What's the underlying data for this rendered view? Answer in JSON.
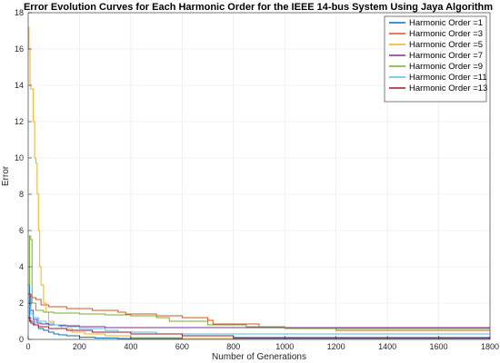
{
  "chart_data": {
    "type": "line",
    "title": "Error Evolution Curves for Each Harmonic Order for the IEEE 14-bus System Using Jaya Algorithm",
    "xlabel": "Number of Generations",
    "ylabel": "Error",
    "xlim": [
      0,
      1800
    ],
    "ylim": [
      0,
      18
    ],
    "xticks": [
      0,
      200,
      400,
      600,
      800,
      1000,
      1200,
      1400,
      1600,
      1800
    ],
    "yticks": [
      0,
      2,
      4,
      6,
      8,
      10,
      12,
      14,
      16,
      18
    ],
    "grid": true,
    "legend_position": "top-right",
    "series": [
      {
        "name": "Harmonic Order =1",
        "color": "#0072BD",
        "x": [
          0,
          5,
          10,
          25,
          40,
          60,
          80,
          100,
          120,
          150,
          200,
          260,
          350,
          1800
        ],
        "y": [
          3.0,
          1.2,
          1.0,
          0.8,
          0.6,
          0.5,
          0.4,
          0.3,
          0.25,
          0.2,
          0.12,
          0.08,
          0.05,
          0.05
        ]
      },
      {
        "name": "Harmonic Order =3",
        "color": "#D95319",
        "x": [
          0,
          5,
          15,
          30,
          50,
          80,
          150,
          250,
          350,
          380,
          500,
          600,
          700,
          720,
          900,
          1000,
          1200,
          1800
        ],
        "y": [
          2.5,
          2.4,
          2.3,
          2.2,
          1.9,
          1.8,
          1.7,
          1.6,
          1.5,
          1.4,
          1.3,
          1.2,
          1.05,
          0.85,
          0.7,
          0.6,
          0.5,
          0.5
        ]
      },
      {
        "name": "Harmonic Order =5",
        "color": "#EDB120",
        "x": [
          0,
          3,
          7,
          10,
          15,
          20,
          25,
          30,
          35,
          40,
          45,
          50,
          60,
          70,
          80,
          100,
          130,
          170,
          220,
          300,
          400,
          600,
          800,
          1800
        ],
        "y": [
          17.2,
          16.0,
          14.0,
          13.8,
          13.8,
          12.0,
          10.0,
          9.7,
          8.0,
          6.0,
          4.0,
          3.0,
          2.0,
          1.5,
          1.0,
          0.8,
          0.6,
          0.4,
          0.3,
          0.2,
          0.1,
          0.05,
          0.02,
          0.02
        ]
      },
      {
        "name": "Harmonic Order =7",
        "color": "#7E2F8E",
        "x": [
          0,
          10,
          20,
          35,
          50,
          80,
          120,
          200,
          300,
          1800
        ],
        "y": [
          2.5,
          1.6,
          1.1,
          0.9,
          0.85,
          0.8,
          0.75,
          0.7,
          0.65,
          0.65
        ]
      },
      {
        "name": "Harmonic Order =9",
        "color": "#77AC30",
        "x": [
          0,
          5,
          10,
          15,
          30,
          60,
          100,
          200,
          300,
          400,
          500,
          550,
          700,
          850,
          1000,
          1200,
          1800
        ],
        "y": [
          3.0,
          5.7,
          5.5,
          2.0,
          1.6,
          1.5,
          1.45,
          1.4,
          1.35,
          1.3,
          1.2,
          1.0,
          0.8,
          0.7,
          0.6,
          0.6,
          0.6
        ]
      },
      {
        "name": "Harmonic Order =11",
        "color": "#4DBEEE",
        "x": [
          0,
          10,
          20,
          40,
          70,
          100,
          150,
          200,
          300,
          350,
          500,
          1800
        ],
        "y": [
          1.8,
          1.4,
          1.2,
          1.0,
          0.9,
          0.8,
          0.7,
          0.6,
          0.5,
          0.4,
          0.3,
          0.3
        ]
      },
      {
        "name": "Harmonic Order =13",
        "color": "#A2142F",
        "x": [
          0,
          5,
          10,
          20,
          40,
          80,
          150,
          250,
          400,
          600,
          800,
          1800
        ],
        "y": [
          1.2,
          1.0,
          0.9,
          0.8,
          0.7,
          0.6,
          0.5,
          0.4,
          0.3,
          0.2,
          0.1,
          0.1
        ]
      }
    ]
  }
}
